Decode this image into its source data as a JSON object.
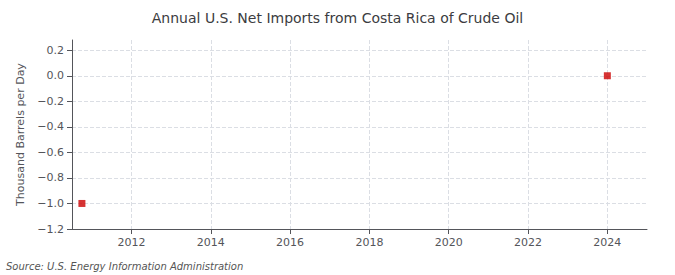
{
  "chart_data": {
    "type": "scatter",
    "title": "Annual U.S. Net Imports from Costa Rica of Crude Oil",
    "ylabel": "Thousand Barrels per Day",
    "source": "Source: U.S. Energy Information Administration",
    "x": [
      2010.75,
      2024
    ],
    "values": [
      -1.0,
      0.0
    ],
    "color": "#cc0000",
    "marker": "square",
    "xlim": [
      2010.5,
      2025.0
    ],
    "xticks": [
      2012,
      2014,
      2016,
      2018,
      2020,
      2022,
      2024
    ],
    "ylim": [
      -1.2,
      0.28
    ],
    "yticks": [
      0.2,
      {
        "value": 0.0,
        "label": "0.0"
      },
      {
        "value": -0.2,
        "label": "−0.2"
      },
      {
        "value": -0.4,
        "label": "−0.4"
      },
      {
        "value": -0.6,
        "label": "−0.6"
      },
      {
        "value": -0.8,
        "label": "−0.8"
      },
      {
        "value": -1.0,
        "label": "−1.0"
      },
      {
        "value": -1.2,
        "label": "−1.2"
      }
    ],
    "grid": true
  }
}
